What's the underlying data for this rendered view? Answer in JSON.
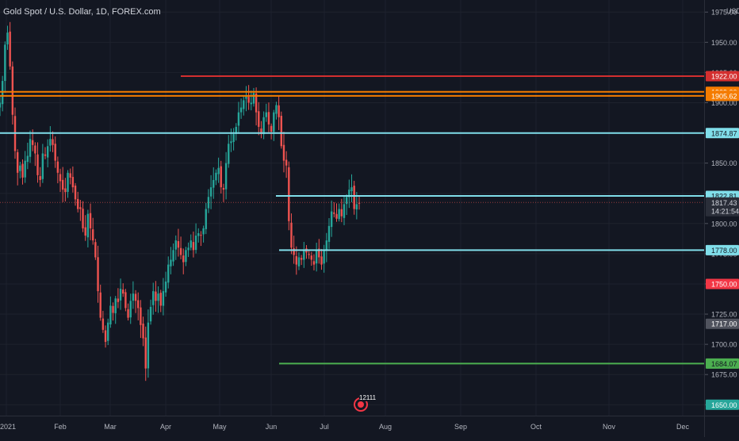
{
  "header": {
    "title": "Gold Spot / U.S. Dollar, 1D, FOREX.com",
    "currency": "USD"
  },
  "price_axis": {
    "ticks": [
      "1975.00",
      "1950.00",
      "1925.00",
      "1900.00",
      "1875.00",
      "1850.00",
      "1825.00",
      "1800.00",
      "1775.00",
      "1750.00",
      "1725.00",
      "1700.00",
      "1675.00",
      "1650.00"
    ]
  },
  "time_axis": {
    "labels": [
      "2021",
      "Feb",
      "Mar",
      "Apr",
      "May",
      "Jun",
      "Jul",
      "Aug",
      "Sep",
      "Oct",
      "Nov",
      "Dec"
    ]
  },
  "horizontal_levels": [
    {
      "price": 1922.0,
      "label": "1922.00",
      "color": "#d32f2f",
      "label_text": "#ffffff",
      "start_x": 228
    },
    {
      "price": 1909.0,
      "label": "1909.00",
      "color": "#f57c00",
      "label_text": "#ffffff",
      "start_x": 0
    },
    {
      "price": 1905.62,
      "label": "1905.62",
      "color": "#f57c00",
      "label_text": "#ffffff",
      "start_x": 0
    },
    {
      "price": 1874.87,
      "label": "1874.87",
      "color": "#80deea",
      "label_text": "#131722",
      "start_x": 0
    },
    {
      "price": 1822.81,
      "label": "1822.81",
      "color": "#80deea",
      "label_text": "#131722",
      "start_x": 348
    },
    {
      "price": 1778.0,
      "label": "1778.00",
      "color": "#80deea",
      "label_text": "#131722",
      "start_x": 352
    },
    {
      "price": 1684.07,
      "label": "1684.07",
      "color": "#4caf50",
      "label_text": "#131722",
      "start_x": 352
    }
  ],
  "price_labels": [
    {
      "price": 1817.43,
      "label": "1817.43",
      "sub": "14:21:54",
      "color": "#d1d4dc",
      "bg": "#2a2e39"
    },
    {
      "price": 1750.0,
      "label": "1750.00",
      "color": "#ffffff",
      "bg": "#f23645"
    },
    {
      "price": 1717.0,
      "label": "1717.00",
      "color": "#ffffff",
      "bg": "#50535e"
    },
    {
      "price": 1650.0,
      "label": "1650.00",
      "color": "#ffffff",
      "bg": "#26a69a"
    }
  ],
  "current_price": 1817.43,
  "event": {
    "label": "12111",
    "icon": "earnings-flag-icon"
  },
  "colors": {
    "up": "#26a69a",
    "down": "#ef5350",
    "background": "#131722",
    "grid": "#1e222d",
    "axis_text": "#b2b5be"
  },
  "chart_data": {
    "type": "candlestick",
    "symbol": "Gold Spot / U.S. Dollar",
    "interval": "1D",
    "ylim": [
      1641,
      1985
    ],
    "closes": [
      1900,
      1918,
      1948,
      1958,
      1930,
      1890,
      1860,
      1842,
      1848,
      1838,
      1852,
      1856,
      1870,
      1865,
      1858,
      1840,
      1836,
      1858,
      1856,
      1864,
      1870,
      1865,
      1852,
      1842,
      1835,
      1828,
      1826,
      1842,
      1838,
      1830,
      1820,
      1812,
      1812,
      1796,
      1790,
      1808,
      1796,
      1786,
      1772,
      1744,
      1722,
      1712,
      1702,
      1718,
      1732,
      1726,
      1738,
      1735,
      1746,
      1742,
      1730,
      1722,
      1736,
      1742,
      1736,
      1730,
      1716,
      1705,
      1680,
      1718,
      1731,
      1744,
      1736,
      1742,
      1732,
      1744,
      1752,
      1766,
      1770,
      1778,
      1786,
      1780,
      1774,
      1768,
      1778,
      1780,
      1786,
      1778,
      1790,
      1792,
      1790,
      1796,
      1812,
      1822,
      1830,
      1836,
      1842,
      1846,
      1830,
      1828,
      1850,
      1866,
      1868,
      1874,
      1880,
      1892,
      1896,
      1902,
      1905,
      1900,
      1900,
      1908,
      1892,
      1880,
      1874,
      1888,
      1892,
      1882,
      1876,
      1892,
      1898,
      1888,
      1864,
      1852,
      1848,
      1802,
      1780,
      1774,
      1766,
      1772,
      1770,
      1778,
      1776,
      1774,
      1770,
      1766,
      1778,
      1772,
      1766,
      1778,
      1786,
      1798,
      1810,
      1808,
      1804,
      1812,
      1806,
      1816,
      1822,
      1828,
      1830,
      1812,
      1816,
      1817
    ]
  }
}
